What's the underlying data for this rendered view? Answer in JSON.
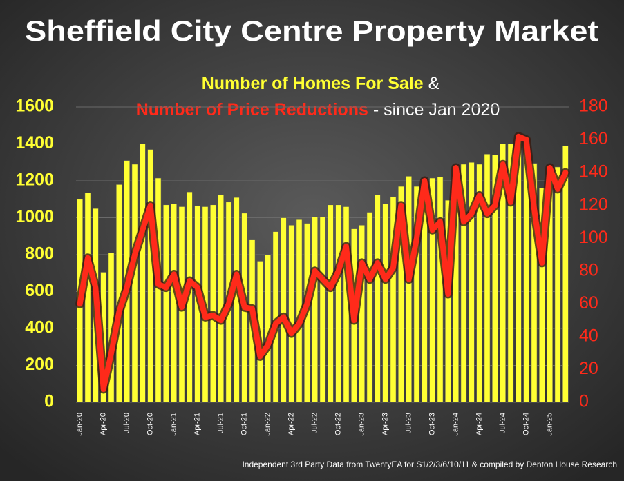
{
  "chart_data": {
    "type": "bar-line",
    "title": "Sheffield City Centre Property Market",
    "subtitle_joiner": "&",
    "subtitle_suffix": "- since Jan 2020",
    "note": "Independent 3rd Party Data from TwentyEA for S1/2/3/6/10/11 & compiled by Denton House Research",
    "categories": [
      "Jan-20",
      null,
      null,
      "Apr-20",
      null,
      null,
      "Jul-20",
      null,
      null,
      "Oct-20",
      null,
      null,
      "Jan-21",
      null,
      null,
      "Apr-21",
      null,
      null,
      "Jul-21",
      null,
      null,
      "Oct-21",
      null,
      null,
      "Jan-22",
      null,
      null,
      "Apr-22",
      null,
      null,
      "Jul-22",
      null,
      null,
      "Oct-22",
      null,
      null,
      "Jan-23",
      null,
      null,
      "Apr-23",
      null,
      null,
      "Jul-23",
      null,
      null,
      "Oct-23",
      null,
      null,
      "Jan-24",
      null,
      null,
      "Apr-24",
      null,
      null,
      "Jul-24",
      null,
      null,
      "Oct-24",
      null,
      null,
      "Jan-25",
      null,
      null
    ],
    "series": [
      {
        "name": "Number of Homes For Sale",
        "color": "#ffff33",
        "type": "bar",
        "values": [
          1100,
          1135,
          1050,
          705,
          810,
          1180,
          1310,
          1290,
          1400,
          1370,
          1215,
          1070,
          1075,
          1060,
          1140,
          1065,
          1060,
          1070,
          1125,
          1085,
          1110,
          1025,
          880,
          765,
          800,
          925,
          1000,
          960,
          990,
          970,
          1005,
          1005,
          1070,
          1070,
          1060,
          940,
          960,
          1030,
          1125,
          1075,
          1115,
          1170,
          1225,
          1170,
          1200,
          1215,
          1220,
          1095,
          1280,
          1290,
          1300,
          1290,
          1345,
          1340,
          1400,
          1400,
          1450,
          1440,
          1295,
          1160,
          1240,
          1275,
          1390
        ]
      },
      {
        "name": "Number of Price Reductions",
        "color": "#ff2a1a",
        "type": "line",
        "axis": "y2",
        "values": [
          60,
          88,
          70,
          8,
          30,
          55,
          70,
          90,
          105,
          120,
          72,
          70,
          78,
          58,
          74,
          70,
          52,
          53,
          50,
          60,
          78,
          58,
          57,
          28,
          35,
          48,
          52,
          42,
          48,
          60,
          80,
          75,
          70,
          80,
          95,
          50,
          85,
          75,
          85,
          75,
          82,
          120,
          75,
          100,
          135,
          105,
          110,
          66,
          143,
          110,
          115,
          126,
          115,
          120,
          145,
          122,
          162,
          160,
          118,
          85,
          143,
          130,
          140
        ]
      }
    ],
    "ylim": [
      0,
      1600
    ],
    "yticks": [
      0,
      200,
      400,
      600,
      800,
      1000,
      1200,
      1400,
      1600
    ],
    "y2lim": [
      0,
      180
    ],
    "y2ticks": [
      0,
      20,
      40,
      60,
      80,
      100,
      120,
      140,
      160,
      180
    ],
    "grid": true
  }
}
